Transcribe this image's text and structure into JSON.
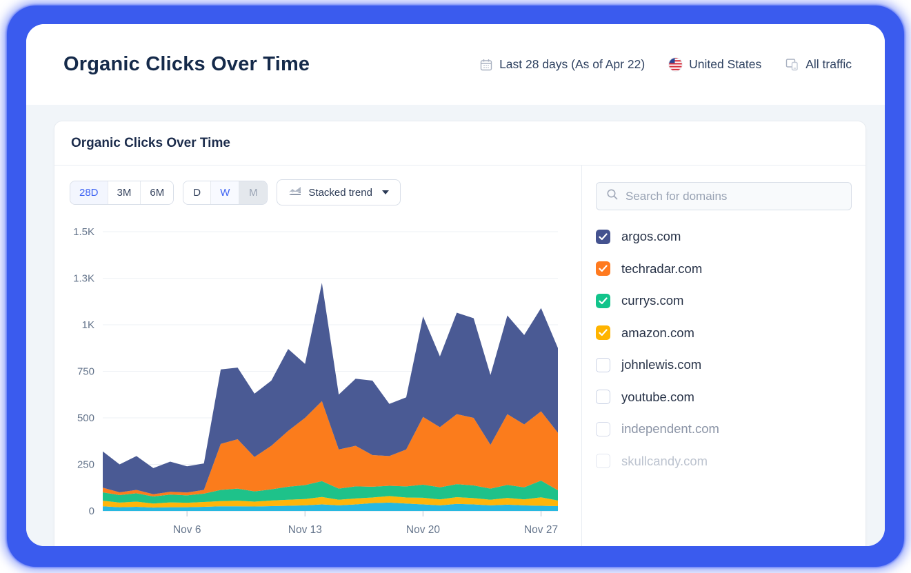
{
  "frame": {
    "color": "#3A5BEE"
  },
  "header": {
    "title": "Organic Clicks Over Time",
    "date_range": "Last 28 days (As of Apr 22)",
    "country": "United States",
    "traffic_filter": "All traffic"
  },
  "card": {
    "title": "Organic Clicks Over Time"
  },
  "controls": {
    "range_options": [
      {
        "label": "28D",
        "active": true
      },
      {
        "label": "3M",
        "active": false
      },
      {
        "label": "6M",
        "active": false
      }
    ],
    "granularity_options": [
      {
        "label": "D",
        "state": "normal"
      },
      {
        "label": "W",
        "state": "active"
      },
      {
        "label": "M",
        "state": "disabled"
      }
    ],
    "chart_type_dropdown": {
      "label": "Stacked trend"
    }
  },
  "search": {
    "placeholder": "Search for domains"
  },
  "domains": [
    {
      "name": "argos.com",
      "checked": true,
      "color": "#44528F",
      "style": "normal"
    },
    {
      "name": "techradar.com",
      "checked": true,
      "color": "#FF7A1F",
      "style": "normal"
    },
    {
      "name": "currys.com",
      "checked": true,
      "color": "#12C48B",
      "style": "normal"
    },
    {
      "name": "amazon.com",
      "checked": true,
      "color": "#FFB400",
      "style": "normal"
    },
    {
      "name": "johnlewis.com",
      "checked": false,
      "color": null,
      "style": "normal"
    },
    {
      "name": "youtube.com",
      "checked": false,
      "color": null,
      "style": "normal"
    },
    {
      "name": "independent.com",
      "checked": false,
      "color": null,
      "style": "muted"
    },
    {
      "name": "skullcandy.com",
      "checked": false,
      "color": null,
      "style": "faded"
    }
  ],
  "chart_data": {
    "type": "area",
    "stacked": true,
    "title": "Organic Clicks Over Time",
    "x_points": 28,
    "x_tick_labels": [
      "Nov 6",
      "Nov 13",
      "Nov 20",
      "Nov 27"
    ],
    "x_tick_indices": [
      5,
      12,
      19,
      26
    ],
    "ylim": [
      0,
      1500
    ],
    "y_ticks": [
      {
        "value": 0,
        "label": "0"
      },
      {
        "value": 250,
        "label": "250"
      },
      {
        "value": 500,
        "label": "500"
      },
      {
        "value": 750,
        "label": "750"
      },
      {
        "value": 1000,
        "label": "1K"
      },
      {
        "value": 1250,
        "label": "1.3K"
      },
      {
        "value": 1500,
        "label": "1.5K"
      }
    ],
    "grid": true,
    "legend_position": "none",
    "series_order": "bottom-to-top",
    "series": [
      {
        "name": "",
        "color": "#28B8E0",
        "values": [
          25,
          20,
          22,
          18,
          20,
          20,
          22,
          25,
          25,
          24,
          26,
          28,
          30,
          35,
          30,
          35,
          42,
          45,
          40,
          35,
          30,
          38,
          35,
          30,
          34,
          30,
          28,
          26
        ]
      },
      {
        "name": "amazon.com",
        "color": "#FFB50A",
        "values": [
          30,
          25,
          28,
          22,
          26,
          24,
          26,
          28,
          30,
          26,
          30,
          32,
          34,
          40,
          30,
          32,
          30,
          35,
          32,
          36,
          32,
          36,
          34,
          30,
          36,
          32,
          45,
          30
        ]
      },
      {
        "name": "currys.com",
        "color": "#1EC28A",
        "values": [
          45,
          40,
          45,
          38,
          42,
          40,
          45,
          60,
          65,
          55,
          60,
          70,
          75,
          85,
          60,
          65,
          58,
          55,
          60,
          70,
          65,
          70,
          68,
          60,
          70,
          65,
          90,
          55
        ]
      },
      {
        "name": "techradar.com",
        "color": "#FB7C1C",
        "values": [
          25,
          15,
          18,
          12,
          15,
          15,
          20,
          247,
          265,
          185,
          234,
          300,
          361,
          430,
          210,
          218,
          170,
          160,
          198,
          364,
          323,
          376,
          363,
          235,
          380,
          338,
          372,
          309
        ]
      },
      {
        "name": "argos.com",
        "color": "#4A5A94",
        "values": [
          195,
          150,
          182,
          140,
          162,
          141,
          142,
          400,
          385,
          340,
          350,
          440,
          290,
          635,
          295,
          360,
          400,
          280,
          280,
          540,
          380,
          545,
          535,
          375,
          530,
          480,
          555,
          455
        ]
      }
    ]
  }
}
